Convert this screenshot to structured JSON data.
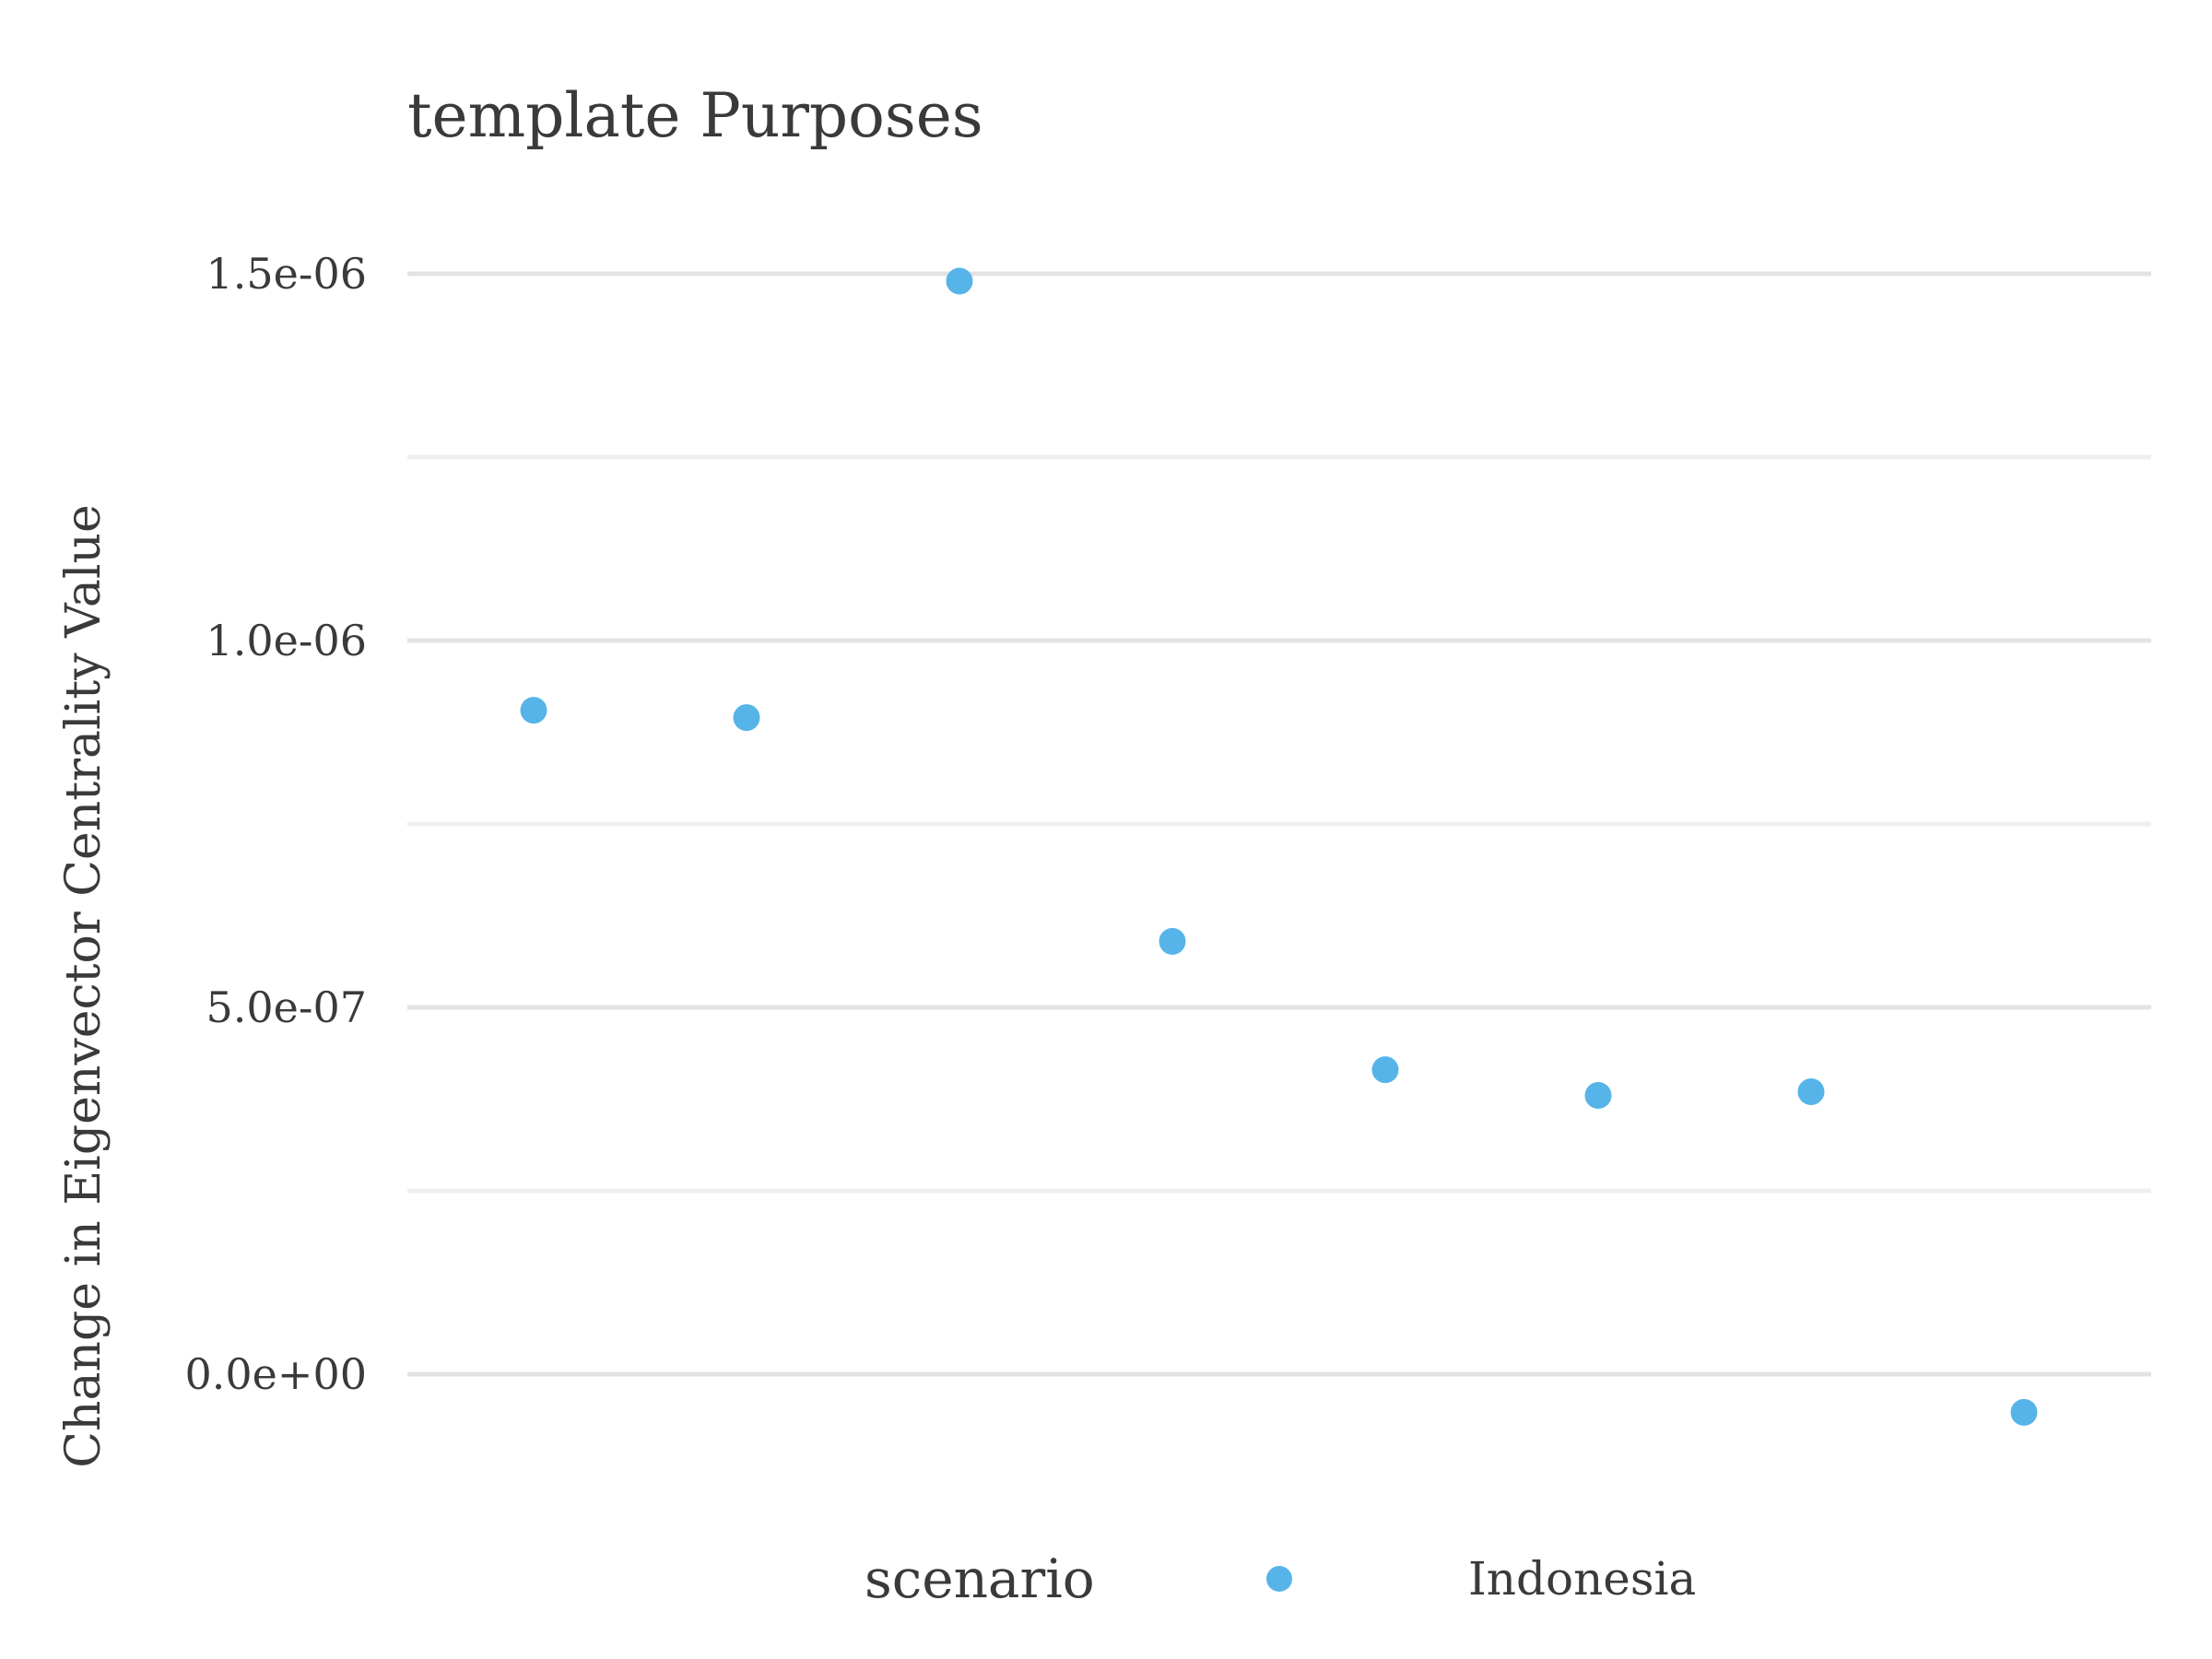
{
  "chart_data": {
    "type": "scatter",
    "title": "template Purposes",
    "xlabel": "",
    "ylabel": "Change in Eigenvector Centrality Value",
    "ylim": [
      -1.9e-07,
      1.62e-06
    ],
    "y_ticks": [
      0,
      5e-07,
      1e-06,
      1.5e-06
    ],
    "y_tick_labels": [
      "0.0e+00",
      "5.0e-07",
      "1.0e-06",
      "1.5e-06"
    ],
    "y_minor_ticks": [
      2.5e-07,
      7.5e-07,
      1.25e-06
    ],
    "grid": true,
    "legend": {
      "title": "scenario",
      "position": "bottom",
      "entries": [
        "Indonesia"
      ]
    },
    "series": [
      {
        "name": "Indonesia",
        "color": "#56B4E9",
        "x": [
          1,
          2,
          3,
          4,
          5,
          6,
          7,
          8
        ],
        "y": [
          9.05e-07,
          8.95e-07,
          1.49e-06,
          5.9e-07,
          4.15e-07,
          3.8e-07,
          3.85e-07,
          -5.2e-08
        ]
      }
    ]
  }
}
